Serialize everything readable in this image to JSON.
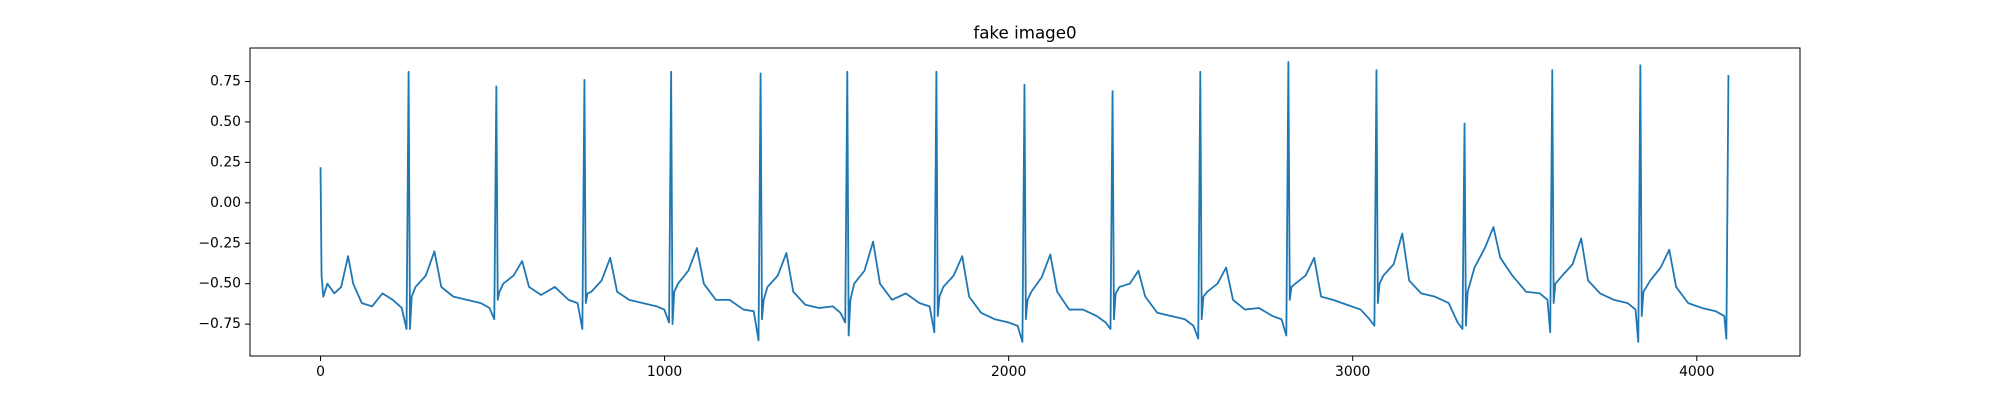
{
  "chart_data": {
    "type": "line",
    "title": "fake image0",
    "x": [
      0,
      3,
      8,
      20,
      40,
      60,
      80,
      95,
      120,
      150,
      180,
      210,
      236,
      250,
      256,
      260,
      265,
      276,
      306,
      331,
      351,
      386,
      426,
      466,
      491,
      505,
      511,
      515,
      520,
      531,
      561,
      586,
      606,
      641,
      681,
      721,
      747,
      761,
      767,
      771,
      776,
      787,
      817,
      842,
      862,
      897,
      937,
      977,
      999,
      1013,
      1019,
      1023,
      1028,
      1039,
      1069,
      1094,
      1114,
      1149,
      1189,
      1229,
      1259,
      1273,
      1279,
      1283,
      1288,
      1299,
      1329,
      1354,
      1374,
      1409,
      1449,
      1489,
      1511,
      1525,
      1531,
      1535,
      1540,
      1551,
      1581,
      1606,
      1626,
      1661,
      1701,
      1741,
      1770,
      1784,
      1790,
      1794,
      1799,
      1810,
      1840,
      1865,
      1885,
      1920,
      1960,
      2000,
      2026,
      2040,
      2046,
      2050,
      2055,
      2066,
      2096,
      2121,
      2141,
      2176,
      2216,
      2256,
      2282,
      2296,
      2302,
      2306,
      2311,
      2322,
      2352,
      2377,
      2397,
      2432,
      2472,
      2512,
      2537,
      2551,
      2557,
      2561,
      2566,
      2577,
      2607,
      2632,
      2652,
      2687,
      2727,
      2767,
      2793,
      2807,
      2813,
      2817,
      2822,
      2833,
      2863,
      2888,
      2908,
      2943,
      2983,
      3023,
      3049,
      3063,
      3069,
      3073,
      3078,
      3089,
      3119,
      3144,
      3164,
      3199,
      3239,
      3279,
      3305,
      3319,
      3325,
      3329,
      3334,
      3354,
      3384,
      3409,
      3429,
      3464,
      3504,
      3544,
      3566,
      3574,
      3580,
      3584,
      3589,
      3609,
      3639,
      3664,
      3684,
      3719,
      3759,
      3799,
      3822,
      3830,
      3836,
      3840,
      3845,
      3865,
      3895,
      3920,
      3940,
      3975,
      4015,
      4055,
      4080,
      4086,
      4092
    ],
    "series": [
      {
        "color": "#1f77b4",
        "values": [
          0.22,
          -0.45,
          -0.58,
          -0.5,
          -0.56,
          -0.52,
          -0.33,
          -0.5,
          -0.62,
          -0.64,
          -0.56,
          -0.6,
          -0.65,
          -0.78,
          0.81,
          -0.78,
          -0.58,
          -0.52,
          -0.45,
          -0.3,
          -0.52,
          -0.58,
          -0.6,
          -0.62,
          -0.65,
          -0.72,
          0.72,
          -0.6,
          -0.55,
          -0.5,
          -0.45,
          -0.36,
          -0.52,
          -0.57,
          -0.52,
          -0.6,
          -0.62,
          -0.78,
          0.76,
          -0.62,
          -0.56,
          -0.55,
          -0.48,
          -0.34,
          -0.55,
          -0.6,
          -0.62,
          -0.64,
          -0.66,
          -0.74,
          0.81,
          -0.75,
          -0.55,
          -0.5,
          -0.42,
          -0.28,
          -0.5,
          -0.6,
          -0.6,
          -0.66,
          -0.67,
          -0.85,
          0.8,
          -0.72,
          -0.6,
          -0.52,
          -0.45,
          -0.31,
          -0.55,
          -0.63,
          -0.65,
          -0.64,
          -0.68,
          -0.74,
          0.81,
          -0.82,
          -0.6,
          -0.5,
          -0.42,
          -0.24,
          -0.5,
          -0.6,
          -0.56,
          -0.62,
          -0.64,
          -0.8,
          0.81,
          -0.7,
          -0.58,
          -0.52,
          -0.45,
          -0.33,
          -0.58,
          -0.68,
          -0.72,
          -0.74,
          -0.76,
          -0.86,
          0.73,
          -0.72,
          -0.6,
          -0.55,
          -0.46,
          -0.32,
          -0.55,
          -0.66,
          -0.66,
          -0.7,
          -0.74,
          -0.78,
          0.69,
          -0.72,
          -0.56,
          -0.52,
          -0.5,
          -0.42,
          -0.58,
          -0.68,
          -0.7,
          -0.72,
          -0.76,
          -0.84,
          0.81,
          -0.72,
          -0.58,
          -0.55,
          -0.5,
          -0.4,
          -0.6,
          -0.66,
          -0.65,
          -0.7,
          -0.72,
          -0.82,
          0.87,
          -0.6,
          -0.52,
          -0.5,
          -0.45,
          -0.34,
          -0.58,
          -0.6,
          -0.63,
          -0.66,
          -0.72,
          -0.76,
          0.82,
          -0.62,
          -0.5,
          -0.45,
          -0.38,
          -0.19,
          -0.48,
          -0.56,
          -0.58,
          -0.62,
          -0.74,
          -0.78,
          0.49,
          -0.76,
          -0.55,
          -0.4,
          -0.28,
          -0.15,
          -0.34,
          -0.45,
          -0.55,
          -0.56,
          -0.6,
          -0.8,
          0.82,
          -0.62,
          -0.5,
          -0.45,
          -0.38,
          -0.22,
          -0.48,
          -0.56,
          -0.6,
          -0.62,
          -0.66,
          -0.86,
          0.85,
          -0.7,
          -0.55,
          -0.48,
          -0.4,
          -0.29,
          -0.52,
          -0.62,
          -0.65,
          -0.67,
          -0.7,
          -0.84,
          0.79
        ]
      }
    ],
    "xlim": [
      -205,
      4300
    ],
    "xticks": [
      0,
      1000,
      2000,
      3000,
      4000
    ],
    "ylim": [
      -0.947,
      0.957
    ],
    "yticks": [
      {
        "value": -0.75,
        "label": "−0.75"
      },
      {
        "value": -0.5,
        "label": "−0.50"
      },
      {
        "value": -0.25,
        "label": "−0.25"
      },
      {
        "value": 0,
        "label": "0.00"
      },
      0.25,
      {
        "value": 0.5,
        "label": "0.50"
      },
      0.75
    ]
  }
}
